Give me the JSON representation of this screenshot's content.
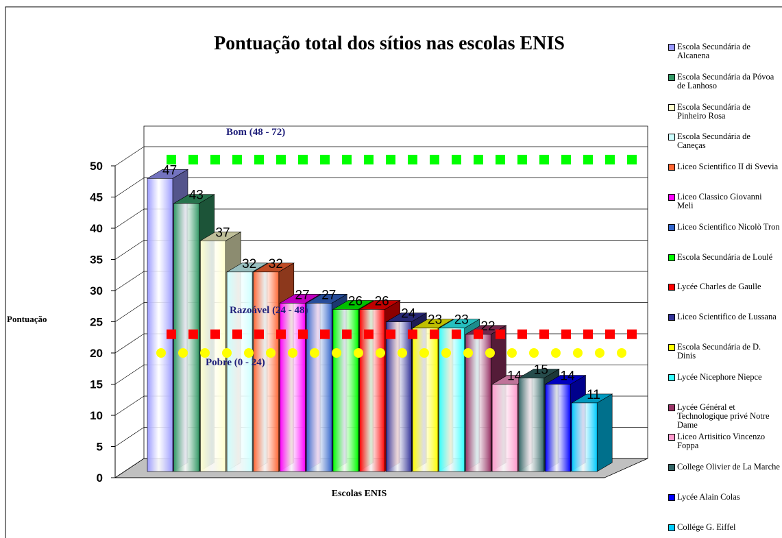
{
  "chart_data": {
    "type": "bar3d",
    "title": "Pontuação total dos sítios nas escolas ENIS",
    "ylabel": "Pontuação",
    "xlabel": "Escolas ENIS",
    "categories": [
      "Escola Secundária de Alcanena",
      "Escola Secundária da Póvoa de Lanhoso",
      "Escola Secundária de Pinheiro Rosa",
      "Escola Secundária de Caneças",
      "Liceo Scientifico II di Svevia",
      "Liceo Classico Giovanni Meli",
      "Liceo Scientifico Nicolò Tron",
      "Escola Secundária de Loulé",
      "Lycée Charles de Gaulle",
      "Liceo Scientifico de Lussana",
      "Escola Secundária de D. Dinis",
      "Lycée Nicephore Niepce",
      "Lycée Général et Technologique privé Notre Dame",
      "Liceo Artisitico Vincenzo Foppa",
      "College Olivier de La Marche",
      "Lycée Alain Colas",
      "Collége G. Eiffel"
    ],
    "values": [
      47,
      43,
      37,
      32,
      32,
      27,
      27,
      26,
      26,
      24,
      23,
      23,
      22,
      14,
      15,
      14,
      11
    ],
    "colors": [
      "#9999ff",
      "#339966",
      "#ffffcc",
      "#ccffff",
      "#ff6633",
      "#ff00ff",
      "#3366cc",
      "#00ff00",
      "#ff0000",
      "#333399",
      "#ffff00",
      "#33ffff",
      "#993366",
      "#ff99cc",
      "#336666",
      "#0000ff",
      "#00ccff"
    ],
    "ylim": [
      0,
      50
    ],
    "yticks": [
      0,
      5,
      10,
      15,
      20,
      25,
      30,
      35,
      40,
      45,
      50
    ],
    "grid": true,
    "reference_lines": [
      {
        "label": "Bom (48 - 72)",
        "value": 51,
        "color": "#00ff00",
        "marker": "square"
      },
      {
        "label": "Razoável (24 - 48)",
        "value": 23,
        "color": "#ff0000",
        "marker": "square"
      },
      {
        "label": "Pobre (0 - 24)",
        "value": 20,
        "color": "#ffff00",
        "marker": "circle"
      }
    ]
  }
}
